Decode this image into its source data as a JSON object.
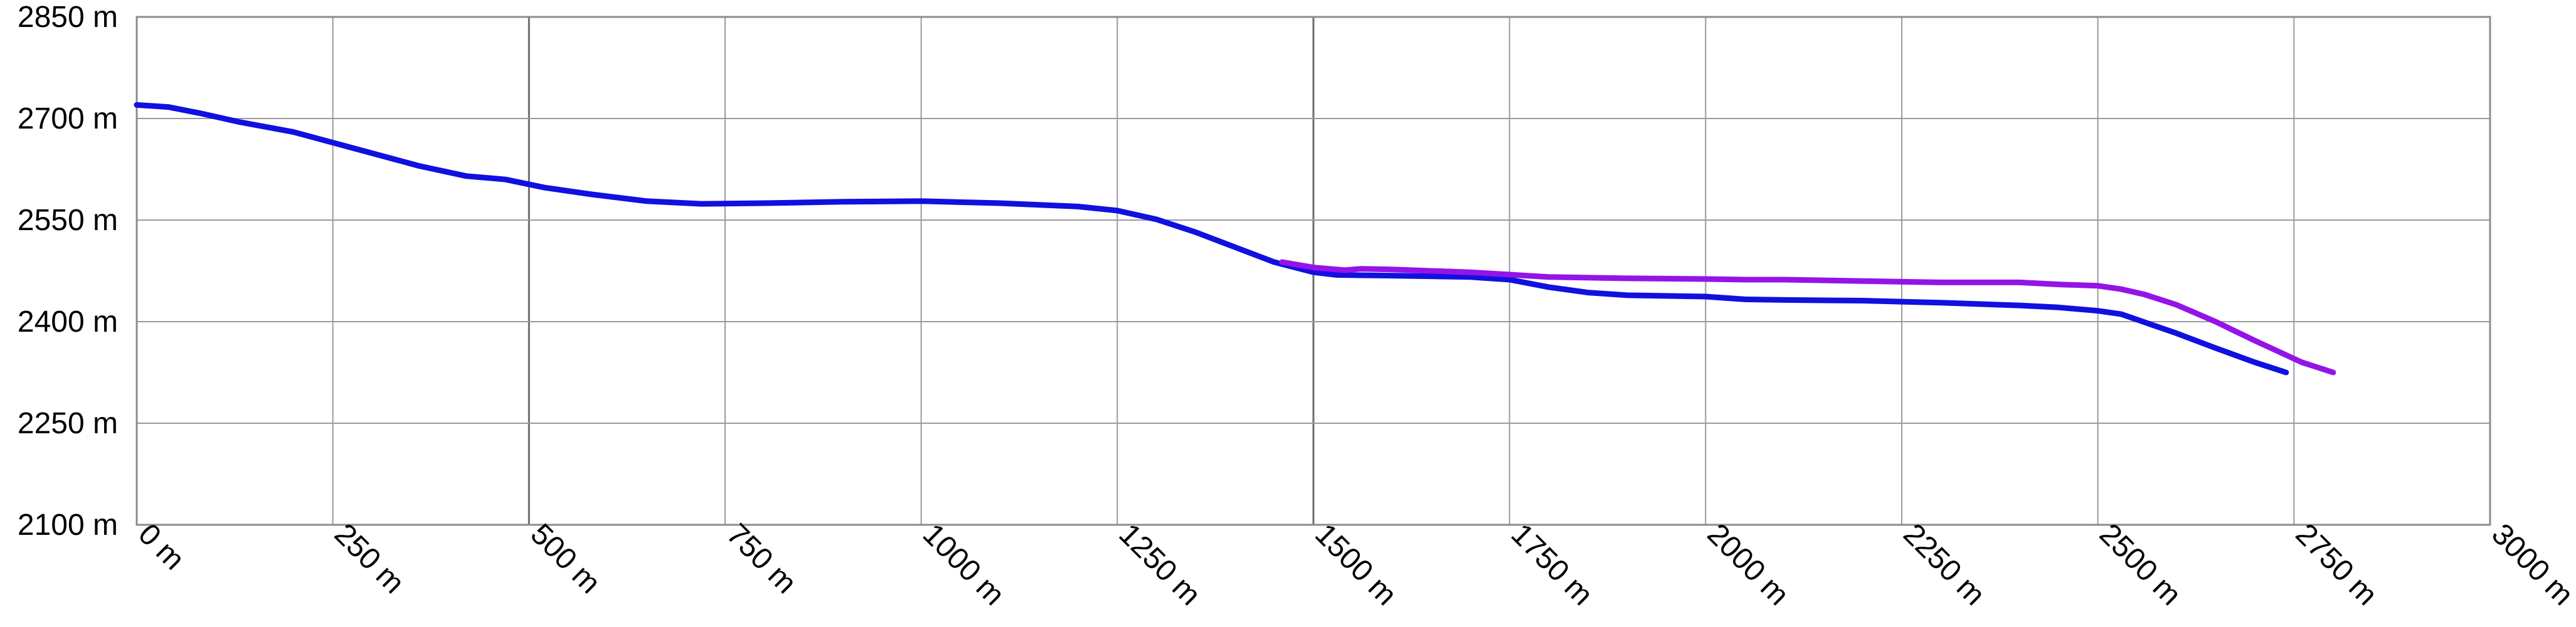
{
  "chart_data": {
    "type": "line",
    "title": "",
    "xlabel": "",
    "ylabel": "",
    "xlim": [
      0,
      3000
    ],
    "ylim": [
      2100,
      2850
    ],
    "x_ticks": [
      0,
      250,
      500,
      750,
      1000,
      1250,
      1500,
      1750,
      2000,
      2250,
      2500,
      2750,
      3000
    ],
    "x_tick_labels": [
      "0 m",
      "250 m",
      "500 m",
      "750 m",
      "1000 m",
      "1250 m",
      "1500 m",
      "1750 m",
      "2000 m",
      "2250 m",
      "2500 m",
      "2750 m",
      "3000 m"
    ],
    "y_ticks": [
      2100,
      2250,
      2400,
      2550,
      2700,
      2850
    ],
    "y_tick_labels": [
      "2100 m",
      "2250 m",
      "2400 m",
      "2550 m",
      "2700 m",
      "2850 m"
    ],
    "major_x_ticks": [
      500,
      1500
    ],
    "grid": true,
    "legend": "none",
    "series": [
      {
        "color": "#1010e0",
        "x": [
          0,
          40,
          80,
          130,
          200,
          280,
          360,
          420,
          470,
          520,
          580,
          650,
          720,
          800,
          900,
          1000,
          1100,
          1200,
          1250,
          1300,
          1350,
          1400,
          1450,
          1500,
          1530,
          1600,
          1700,
          1750,
          1800,
          1850,
          1900,
          2000,
          2050,
          2100,
          2200,
          2300,
          2400,
          2450,
          2500,
          2530,
          2550,
          2600,
          2650,
          2700,
          2740
        ],
        "y": [
          2720,
          2717,
          2708,
          2695,
          2680,
          2655,
          2630,
          2615,
          2610,
          2598,
          2588,
          2578,
          2574,
          2575,
          2577,
          2578,
          2575,
          2570,
          2564,
          2551,
          2532,
          2510,
          2488,
          2473,
          2469,
          2468,
          2466,
          2462,
          2451,
          2443,
          2439,
          2437,
          2433,
          2432,
          2431,
          2428,
          2424,
          2421,
          2416,
          2411,
          2403,
          2383,
          2361,
          2340,
          2325
        ]
      },
      {
        "color": "#9414e8",
        "x": [
          1460,
          1500,
          1540,
          1560,
          1600,
          1700,
          1800,
          1900,
          2000,
          2050,
          2100,
          2200,
          2300,
          2400,
          2450,
          2500,
          2530,
          2560,
          2600,
          2650,
          2700,
          2760,
          2800
        ],
        "y": [
          2488,
          2480,
          2476,
          2478,
          2477,
          2473,
          2466,
          2464,
          2463,
          2462,
          2462,
          2460,
          2458,
          2458,
          2455,
          2453,
          2448,
          2440,
          2425,
          2400,
          2372,
          2340,
          2325
        ]
      }
    ]
  }
}
